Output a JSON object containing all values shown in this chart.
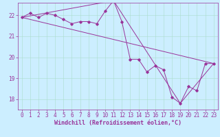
{
  "title": "",
  "xlabel": "Windchill (Refroidissement éolien,°C)",
  "ylabel": "",
  "bg_color": "#cceeff",
  "line_color": "#993399",
  "xlim": [
    -0.5,
    23.5
  ],
  "ylim": [
    17.5,
    22.6
  ],
  "yticks": [
    18,
    19,
    20,
    21,
    22
  ],
  "xticks": [
    0,
    1,
    2,
    3,
    4,
    5,
    6,
    7,
    8,
    9,
    10,
    11,
    12,
    13,
    14,
    15,
    16,
    17,
    18,
    19,
    20,
    21,
    22,
    23
  ],
  "series": [
    [
      0,
      21.9
    ],
    [
      1,
      22.1
    ],
    [
      2,
      21.9
    ],
    [
      3,
      22.1
    ],
    [
      4,
      22.0
    ],
    [
      5,
      21.8
    ],
    [
      6,
      21.6
    ],
    [
      7,
      21.7
    ],
    [
      8,
      21.7
    ],
    [
      9,
      21.6
    ],
    [
      10,
      22.2
    ],
    [
      11,
      22.7
    ],
    [
      12,
      21.7
    ],
    [
      13,
      19.9
    ],
    [
      14,
      19.9
    ],
    [
      15,
      19.3
    ],
    [
      16,
      19.6
    ],
    [
      17,
      19.4
    ],
    [
      18,
      18.1
    ],
    [
      19,
      17.8
    ],
    [
      20,
      18.6
    ],
    [
      21,
      18.4
    ],
    [
      22,
      19.7
    ],
    [
      23,
      19.7
    ]
  ],
  "series2": [
    [
      0,
      21.9
    ],
    [
      23,
      19.7
    ]
  ],
  "series3": [
    [
      0,
      21.9
    ],
    [
      11,
      22.7
    ],
    [
      19,
      17.8
    ],
    [
      23,
      19.7
    ]
  ],
  "font_color": "#993399",
  "tick_fontsize": 5.5,
  "label_fontsize": 6.0,
  "grid_color": "#aaddcc"
}
